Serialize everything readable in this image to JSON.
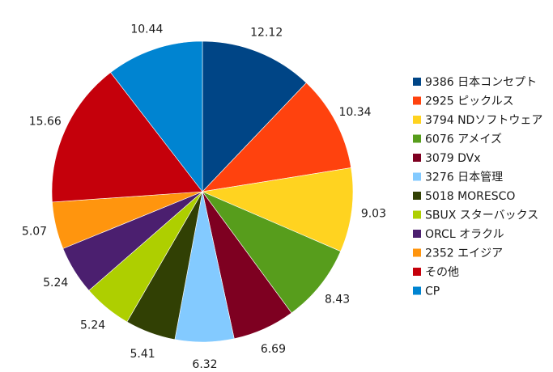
{
  "chart_data": {
    "type": "pie",
    "title": "",
    "start_angle_deg": 0,
    "direction": "clockwise",
    "legend_position": "right",
    "slices": [
      {
        "label": "9386 日本コンセプト",
        "value": 12.12,
        "value_label": "12.12",
        "color": "#004586"
      },
      {
        "label": "2925 ピックルス",
        "value": 10.34,
        "value_label": "10.34",
        "color": "#ff420e"
      },
      {
        "label": "3794 NDソフトウェア",
        "value": 9.03,
        "value_label": "9.03",
        "color": "#ffd320"
      },
      {
        "label": "6076 アメイズ",
        "value": 8.43,
        "value_label": "8.43",
        "color": "#579d1c"
      },
      {
        "label": "3079 DVx",
        "value": 6.69,
        "value_label": "6.69",
        "color": "#7e0021"
      },
      {
        "label": "3276 日本管理",
        "value": 6.32,
        "value_label": "6.32",
        "color": "#83caff"
      },
      {
        "label": "5018 MORESCO",
        "value": 5.41,
        "value_label": "5.41",
        "color": "#314004"
      },
      {
        "label": "SBUX スターバックス",
        "value": 5.24,
        "value_label": "5.24",
        "color": "#aecf00"
      },
      {
        "label": "ORCL オラクル",
        "value": 5.24,
        "value_label": "5.24",
        "color": "#4b1f6f"
      },
      {
        "label": "2352 エイジア",
        "value": 5.07,
        "value_label": "5.07",
        "color": "#ff950e"
      },
      {
        "label": "その他",
        "value": 15.66,
        "value_label": "15.66",
        "color": "#c5000b"
      },
      {
        "label": "CP",
        "value": 10.44,
        "value_label": "10.44",
        "color": "#0084d1"
      }
    ]
  }
}
